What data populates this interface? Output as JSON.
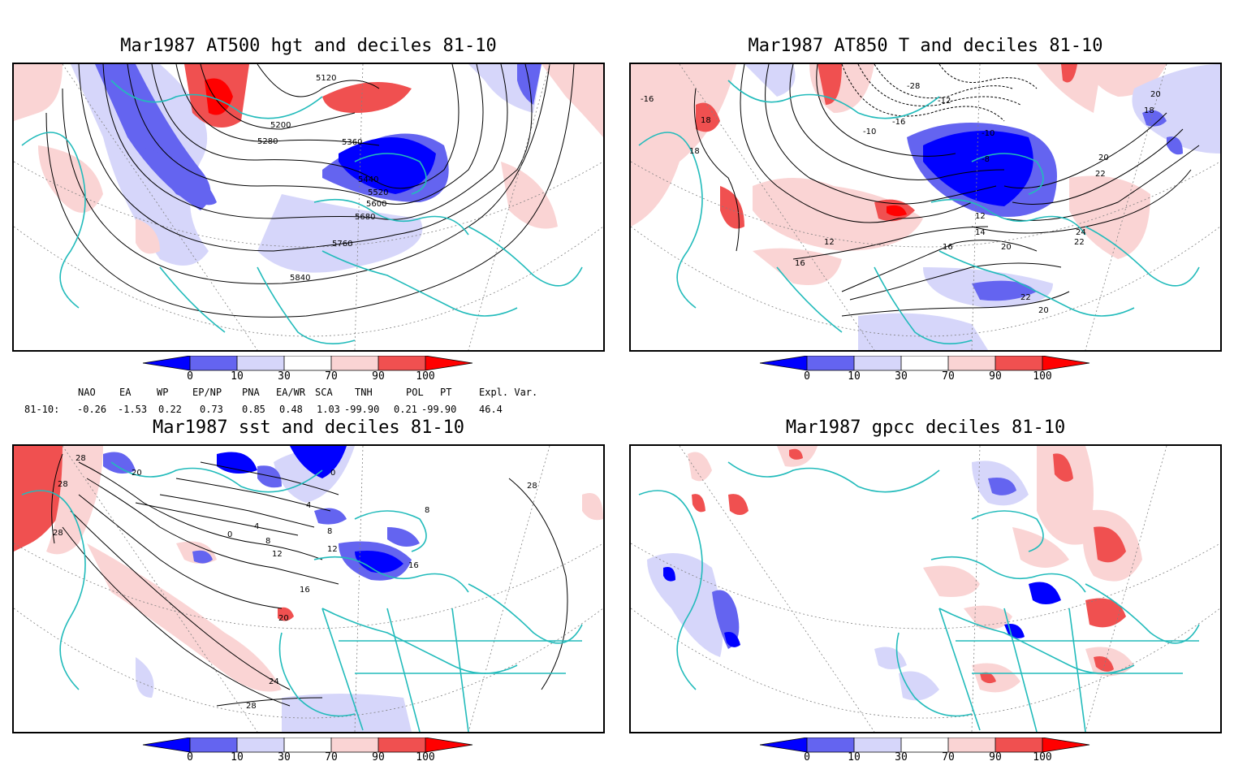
{
  "panels": [
    {
      "title": "Mar1987 AT500 hgt and deciles 81-10",
      "contour_labels": [
        "5120",
        "5200",
        "5280",
        "5360",
        "5440",
        "5520",
        "5600",
        "5680",
        "5760",
        "5840"
      ]
    },
    {
      "title": "Mar1987 AT850 T and deciles 81-10",
      "contour_labels": [
        "-16",
        "18",
        "18",
        "-10",
        "-16",
        "-28",
        "-12",
        "-10",
        "-8",
        "20",
        "18",
        "20",
        "22",
        "12",
        "16",
        "14",
        "12",
        "20",
        "24",
        "22",
        "22",
        "20",
        "16"
      ]
    },
    {
      "title": "Mar1987 sst and deciles 81-10",
      "contour_labels": [
        "28",
        "20",
        "28",
        "28",
        "0",
        "4",
        "8",
        "12",
        "16",
        "20",
        "24",
        "28",
        "16",
        "12",
        "8",
        "0",
        "4",
        "8",
        "28"
      ]
    },
    {
      "title": "Mar1987 gpcc deciles 81-10",
      "contour_labels": []
    }
  ],
  "colorbar": {
    "labels": [
      "0",
      "10",
      "30",
      "70",
      "90",
      "100"
    ],
    "colors": [
      "#0000ff",
      "#6464f0",
      "#d6d6fa",
      "#ffffff",
      "#fad4d4",
      "#f05050",
      "#ff0000"
    ]
  },
  "indices": {
    "headers": [
      "NAO",
      "EA",
      "WP",
      "EP/NP",
      "PNA",
      "EA/WR",
      "SCA",
      "TNH",
      "POL",
      "PT",
      "Expl. Var."
    ],
    "row_label": "81-10:",
    "values": [
      "-0.26",
      "-1.53",
      "0.22",
      "0.73",
      "0.85",
      "0.48",
      "1.03",
      "-99.90",
      "0.21",
      "-99.90",
      "46.4"
    ]
  }
}
